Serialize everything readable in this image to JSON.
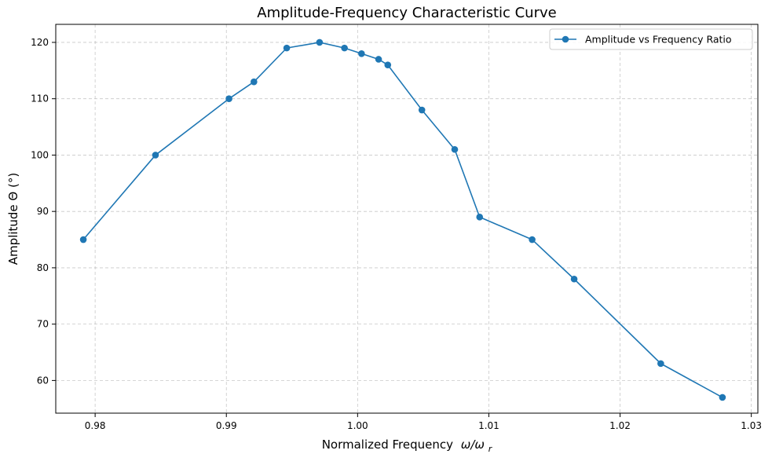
{
  "chart_data": {
    "type": "line",
    "title": "Amplitude-Frequency Characteristic Curve",
    "xlabel": "Normalized Frequency",
    "xlabel_math": "ω/ω",
    "xlabel_math_sub": "r",
    "ylabel": "Amplitude Θ (°)",
    "xlim": [
      0.977,
      1.0305
    ],
    "ylim": [
      54.2,
      123.2
    ],
    "xticks": [
      0.98,
      0.99,
      1.0,
      1.01,
      1.02,
      1.03
    ],
    "xtick_labels": [
      "0.98",
      "0.99",
      "1.00",
      "1.01",
      "1.02",
      "1.03"
    ],
    "yticks": [
      60,
      70,
      80,
      90,
      100,
      110,
      120
    ],
    "ytick_labels": [
      "60",
      "70",
      "80",
      "90",
      "100",
      "110",
      "120"
    ],
    "grid": true,
    "legend_position": "top-right",
    "series": [
      {
        "name": "Amplitude vs Frequency Ratio",
        "color": "#1f77b4",
        "x": [
          0.9791,
          0.9846,
          0.9902,
          0.9921,
          0.9946,
          0.9971,
          0.999,
          1.0003,
          1.0016,
          1.0023,
          1.0049,
          1.0074,
          1.0093,
          1.0133,
          1.0165,
          1.0231,
          1.0278
        ],
        "y": [
          85,
          100,
          110,
          113,
          119,
          120,
          119,
          118,
          117,
          116,
          108,
          101,
          89,
          85,
          78,
          63,
          57
        ]
      }
    ]
  }
}
